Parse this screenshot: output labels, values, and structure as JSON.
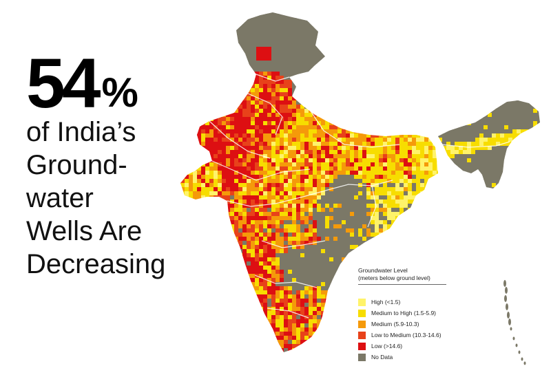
{
  "headline": {
    "number": "54",
    "percent": "%",
    "lines": [
      "of India’s",
      "Ground-",
      "water",
      "Wells Are",
      "Decreasing"
    ]
  },
  "legend": {
    "title_line1": "Groundwater Level",
    "title_line2": "(meters below ground level)",
    "items": [
      {
        "label": "High (<1.5)",
        "color": "#fff36a"
      },
      {
        "label": "Medium to High (1.5-5.9)",
        "color": "#f7dd00"
      },
      {
        "label": "Medium (5.9-10.3)",
        "color": "#f59a0a"
      },
      {
        "label": "Low to Medium (10.3-14.6)",
        "color": "#e8421a"
      },
      {
        "label": "Low (>14.6)",
        "color": "#dd0f12"
      },
      {
        "label": "No Data",
        "color": "#7b7867"
      }
    ]
  },
  "map": {
    "no_data_color": "#7b7867",
    "boundary_color": "#ffffff"
  }
}
